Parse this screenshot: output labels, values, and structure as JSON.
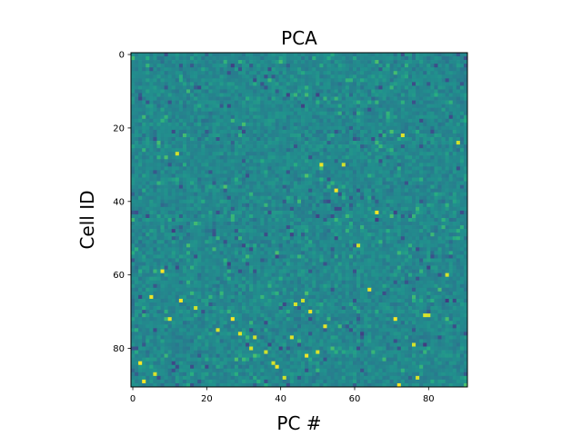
{
  "chart_data": {
    "type": "heatmap",
    "title": "PCA",
    "xlabel": "PC #",
    "ylabel": "Cell ID",
    "n_cols": 91,
    "n_rows": 91,
    "xlim": [
      -0.5,
      90.5
    ],
    "ylim": [
      90.5,
      -0.5
    ],
    "xticks": [
      0,
      20,
      40,
      60,
      80
    ],
    "yticks": [
      0,
      20,
      40,
      60,
      80
    ],
    "colormap": "viridis",
    "grid": false,
    "legend": "none",
    "values_note_seed": 7,
    "hot_spots": [
      [
        3,
        89
      ],
      [
        5,
        66
      ],
      [
        12,
        27
      ],
      [
        13,
        67
      ],
      [
        17,
        69
      ],
      [
        23,
        75
      ],
      [
        27,
        72
      ],
      [
        29,
        76
      ],
      [
        33,
        77
      ],
      [
        36,
        81
      ],
      [
        38,
        84
      ],
      [
        39,
        85
      ],
      [
        41,
        88
      ],
      [
        43,
        77
      ],
      [
        44,
        68
      ],
      [
        46,
        67
      ],
      [
        47,
        82
      ],
      [
        50,
        81
      ],
      [
        51,
        30
      ],
      [
        52,
        74
      ],
      [
        55,
        37
      ],
      [
        57,
        30
      ],
      [
        61,
        52
      ],
      [
        64,
        64
      ],
      [
        71,
        72
      ],
      [
        72,
        90
      ],
      [
        73,
        22
      ],
      [
        76,
        79
      ],
      [
        77,
        88
      ],
      [
        79,
        71
      ],
      [
        80,
        71
      ],
      [
        88,
        24
      ],
      [
        10,
        72
      ],
      [
        8,
        59
      ],
      [
        66,
        43
      ],
      [
        85,
        60
      ],
      [
        2,
        84
      ],
      [
        6,
        87
      ],
      [
        32,
        80
      ],
      [
        48,
        70
      ]
    ]
  }
}
